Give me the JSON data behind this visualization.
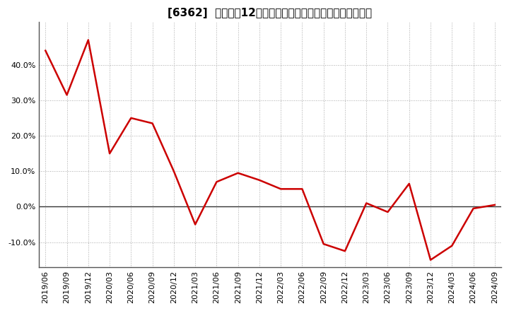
{
  "title": "[6362]  売上高の12か月移動合計の対前年同期増減率の推移",
  "x_labels": [
    "2019/06",
    "2019/09",
    "2019/12",
    "2020/03",
    "2020/06",
    "2020/09",
    "2020/12",
    "2021/03",
    "2021/06",
    "2021/09",
    "2021/12",
    "2022/03",
    "2022/06",
    "2022/09",
    "2022/12",
    "2023/03",
    "2023/06",
    "2023/09",
    "2023/12",
    "2024/03",
    "2024/06",
    "2024/09"
  ],
  "values": [
    44.0,
    31.5,
    47.0,
    15.0,
    25.0,
    23.5,
    10.0,
    -5.0,
    7.0,
    9.5,
    7.5,
    5.0,
    5.0,
    -10.5,
    -12.5,
    1.0,
    -1.5,
    6.5,
    -15.0,
    -11.0,
    -0.5,
    0.5
  ],
  "line_color": "#cc0000",
  "line_width": 1.8,
  "background_color": "#ffffff",
  "plot_bg_color": "#ffffff",
  "grid_color": "#aaaaaa",
  "zero_line_color": "#333333",
  "border_color": "#555555",
  "ylim": [
    -17,
    52
  ],
  "yticks": [
    -10.0,
    0.0,
    10.0,
    20.0,
    30.0,
    40.0
  ],
  "title_fontsize": 11,
  "tick_fontsize": 8
}
